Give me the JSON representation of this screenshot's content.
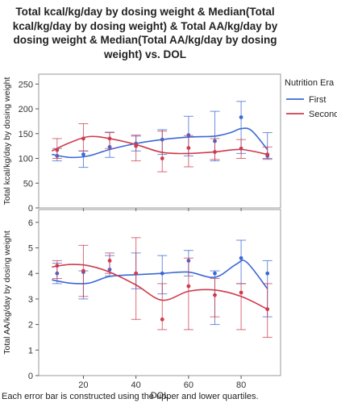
{
  "title_lines": [
    "Total kcal/kg/day by dosing weight & Median(Total",
    "kcal/kg/day by dosing weight) & Total AA/kg/day by",
    "dosing weight & Median(Total AA/kg/day by dosing",
    "weight) vs. DOL"
  ],
  "caption": "Each error bar is constructed using the upper and lower quartiles.",
  "colors": {
    "First": "#3b68d6",
    "Second": "#cf3b4d",
    "grid": "#d9d9d9",
    "frame": "#9a9a9a"
  },
  "chart_data": [
    {
      "type": "scatter",
      "title": "",
      "xlabel": "DOL",
      "ylabel": "Total kcal/kg/day by dosing weight",
      "xlim": [
        3,
        95
      ],
      "ylim": [
        0,
        270
      ],
      "x_ticks": [
        20,
        40,
        60,
        80
      ],
      "y_ticks": [
        0,
        50,
        100,
        150,
        200,
        250
      ],
      "grid": false,
      "error_bars": "quartiles",
      "smoother": true,
      "legend": {
        "title": "Nutrition Era",
        "position": "right",
        "entries": [
          "First",
          "Second"
        ]
      },
      "series": [
        {
          "name": "First",
          "points": [
            {
              "x": 10,
              "y": 105,
              "lo": 95,
              "hi": 120
            },
            {
              "x": 20,
              "y": 108,
              "lo": 82,
              "hi": 115
            },
            {
              "x": 30,
              "y": 123,
              "lo": 102,
              "hi": 153
            },
            {
              "x": 40,
              "y": 130,
              "lo": 115,
              "hi": 145
            },
            {
              "x": 50,
              "y": 138,
              "lo": 108,
              "hi": 158
            },
            {
              "x": 60,
              "y": 147,
              "lo": 105,
              "hi": 185
            },
            {
              "x": 70,
              "y": 135,
              "lo": 95,
              "hi": 195
            },
            {
              "x": 80,
              "y": 183,
              "lo": 110,
              "hi": 215
            },
            {
              "x": 90,
              "y": 105,
              "lo": 100,
              "hi": 152
            }
          ],
          "smooth": [
            [
              8,
              108
            ],
            [
              15,
              102
            ],
            [
              22,
              105
            ],
            [
              30,
              118
            ],
            [
              40,
              130
            ],
            [
              50,
              138
            ],
            [
              60,
              143
            ],
            [
              70,
              145
            ],
            [
              76,
              152
            ],
            [
              80,
              160
            ],
            [
              84,
              156
            ],
            [
              90,
              118
            ]
          ]
        },
        {
          "name": "Second",
          "points": [
            {
              "x": 10,
              "y": 117,
              "lo": 100,
              "hi": 140
            },
            {
              "x": 20,
              "y": 140,
              "lo": 115,
              "hi": 170
            },
            {
              "x": 30,
              "y": 140,
              "lo": 120,
              "hi": 152
            },
            {
              "x": 40,
              "y": 125,
              "lo": 95,
              "hi": 147
            },
            {
              "x": 50,
              "y": 100,
              "lo": 73,
              "hi": 155
            },
            {
              "x": 60,
              "y": 121,
              "lo": 83,
              "hi": 146
            },
            {
              "x": 70,
              "y": 113,
              "lo": 98,
              "hi": 140
            },
            {
              "x": 80,
              "y": 120,
              "lo": 100,
              "hi": 138
            },
            {
              "x": 90,
              "y": 108,
              "lo": 98,
              "hi": 123
            }
          ],
          "smooth": [
            [
              8,
              115
            ],
            [
              15,
              132
            ],
            [
              22,
              144
            ],
            [
              30,
              140
            ],
            [
              40,
              128
            ],
            [
              50,
              112
            ],
            [
              60,
              110
            ],
            [
              70,
              113
            ],
            [
              80,
              118
            ],
            [
              90,
              108
            ]
          ]
        }
      ]
    },
    {
      "type": "scatter",
      "title": "",
      "xlabel": "DOL",
      "ylabel": "Total AA/kg/day by dosing weight",
      "xlim": [
        3,
        95
      ],
      "ylim": [
        0,
        6.5
      ],
      "x_ticks": [
        20,
        40,
        60,
        80
      ],
      "y_ticks": [
        0,
        1,
        2,
        3,
        4,
        5,
        6
      ],
      "x_tick_labels": [
        "20",
        "40",
        "60",
        "80"
      ],
      "grid": false,
      "error_bars": "quartiles",
      "smoother": true,
      "series": [
        {
          "name": "First",
          "points": [
            {
              "x": 10,
              "y": 4.0,
              "lo": 3.6,
              "hi": 4.4
            },
            {
              "x": 20,
              "y": 4.05,
              "lo": 3.0,
              "hi": 4.1
            },
            {
              "x": 30,
              "y": 4.15,
              "lo": 3.9,
              "hi": 4.7
            },
            {
              "x": 40,
              "y": 4.0,
              "lo": 3.4,
              "hi": 4.8
            },
            {
              "x": 50,
              "y": 4.0,
              "lo": 3.2,
              "hi": 4.7
            },
            {
              "x": 60,
              "y": 4.5,
              "lo": 3.9,
              "hi": 4.9
            },
            {
              "x": 70,
              "y": 4.0,
              "lo": 2.0,
              "hi": 4.1
            },
            {
              "x": 80,
              "y": 4.6,
              "lo": 3.6,
              "hi": 5.3
            },
            {
              "x": 90,
              "y": 4.0,
              "lo": 2.3,
              "hi": 4.5
            }
          ],
          "smooth": [
            [
              8,
              3.75
            ],
            [
              15,
              3.62
            ],
            [
              22,
              3.62
            ],
            [
              30,
              3.88
            ],
            [
              40,
              3.95
            ],
            [
              50,
              4.0
            ],
            [
              60,
              4.05
            ],
            [
              70,
              3.85
            ],
            [
              78,
              4.35
            ],
            [
              82,
              4.45
            ],
            [
              90,
              3.4
            ]
          ]
        },
        {
          "name": "Second",
          "points": [
            {
              "x": 10,
              "y": 4.3,
              "lo": 3.8,
              "hi": 4.5
            },
            {
              "x": 20,
              "y": 4.1,
              "lo": 3.1,
              "hi": 5.1
            },
            {
              "x": 30,
              "y": 4.5,
              "lo": 4.0,
              "hi": 4.8
            },
            {
              "x": 40,
              "y": 4.0,
              "lo": 2.2,
              "hi": 5.4
            },
            {
              "x": 50,
              "y": 2.2,
              "lo": 1.8,
              "hi": 3.6
            },
            {
              "x": 60,
              "y": 3.5,
              "lo": 1.8,
              "hi": 4.6
            },
            {
              "x": 70,
              "y": 3.15,
              "lo": 2.3,
              "hi": 3.8
            },
            {
              "x": 80,
              "y": 3.25,
              "lo": 1.8,
              "hi": 3.6
            },
            {
              "x": 90,
              "y": 2.6,
              "lo": 1.5,
              "hi": 3.6
            }
          ],
          "smooth": [
            [
              8,
              4.25
            ],
            [
              15,
              4.35
            ],
            [
              22,
              4.3
            ],
            [
              30,
              4.05
            ],
            [
              40,
              3.55
            ],
            [
              50,
              2.95
            ],
            [
              60,
              3.3
            ],
            [
              70,
              3.35
            ],
            [
              80,
              3.1
            ],
            [
              90,
              2.6
            ]
          ]
        }
      ]
    }
  ]
}
